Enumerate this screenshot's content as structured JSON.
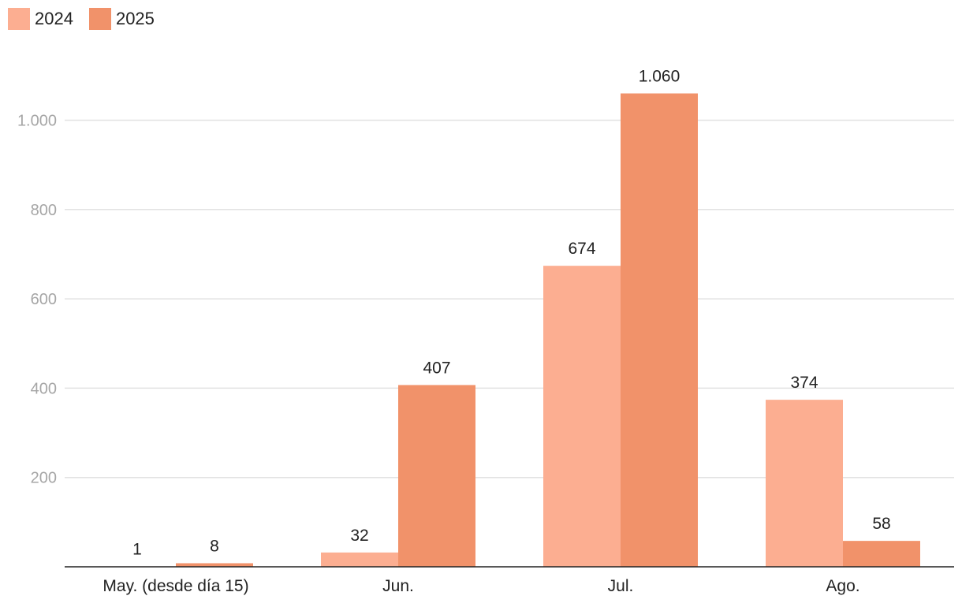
{
  "chart_data": {
    "type": "bar",
    "categories": [
      "May. (desde día 15)",
      "Jun.",
      "Jul.",
      "Ago."
    ],
    "series": [
      {
        "name": "2024",
        "color": "#fcae91",
        "values": [
          1,
          32,
          674,
          374
        ],
        "labels": [
          "1",
          "32",
          "674",
          "374"
        ]
      },
      {
        "name": "2025",
        "color": "#f1926a",
        "values": [
          8,
          407,
          1060,
          58
        ],
        "labels": [
          "8",
          "407",
          "1.060",
          "58"
        ]
      }
    ],
    "yticks": [
      200,
      400,
      600,
      800,
      1000
    ],
    "ytick_labels": [
      "200",
      "400",
      "600",
      "800",
      "1.000"
    ],
    "ylim": [
      0,
      1100
    ],
    "grid": true,
    "legend": "top-left"
  }
}
